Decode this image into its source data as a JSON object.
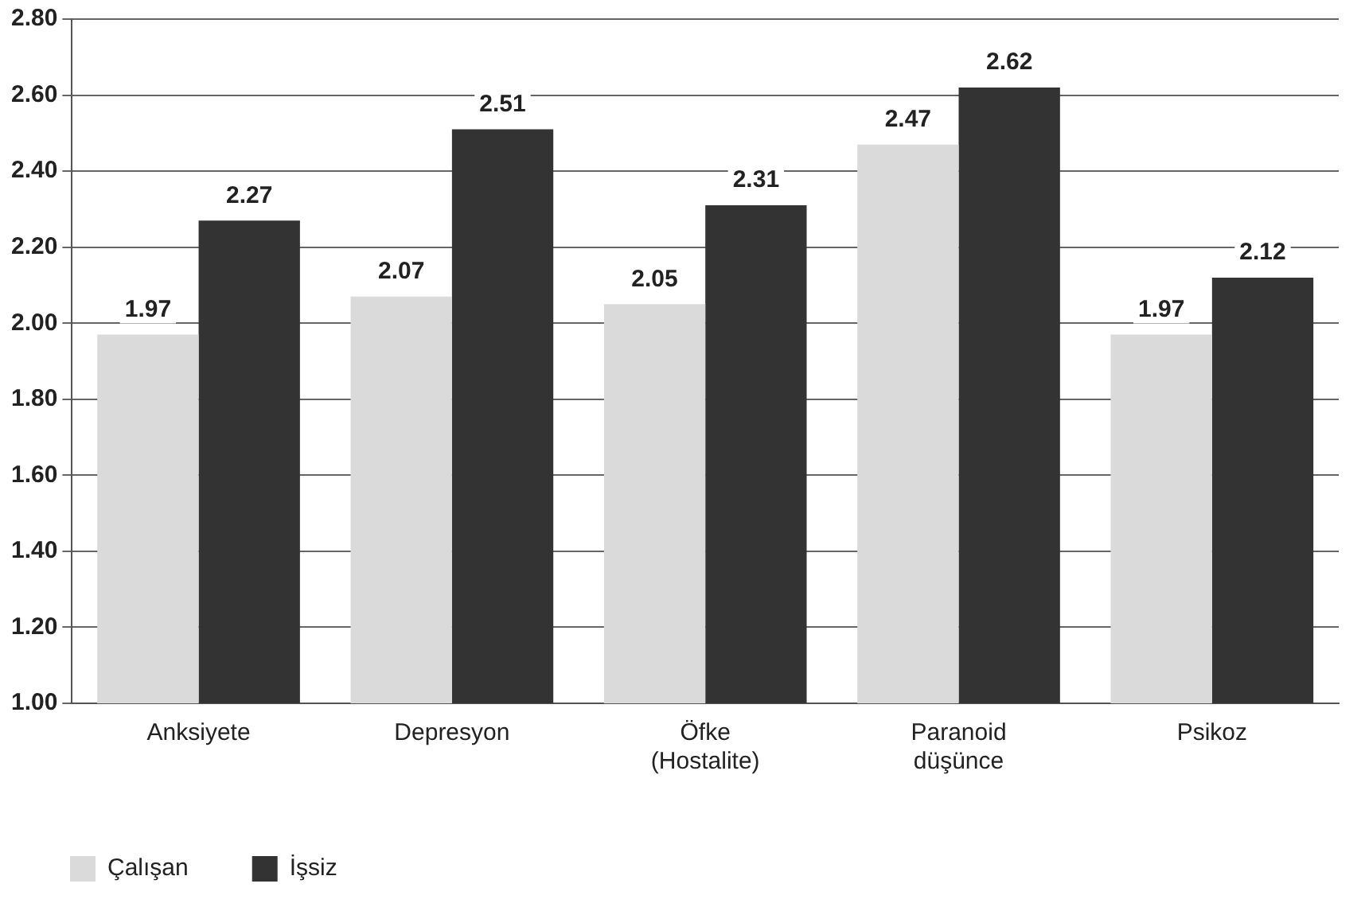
{
  "chart_data": {
    "type": "bar",
    "categories": [
      "Anksiyete",
      "Depresyon",
      "Öfke (Hostalite)",
      "Paranoid düşünce",
      "Psikoz"
    ],
    "series": [
      {
        "name": "Çalışan",
        "color": "#dadada",
        "values": [
          1.97,
          2.07,
          2.05,
          2.47,
          1.97
        ]
      },
      {
        "name": "İşsiz",
        "color": "#333333",
        "values": [
          2.27,
          2.51,
          2.31,
          2.62,
          2.12
        ]
      }
    ],
    "ylim": [
      1,
      2.8
    ],
    "yticks": [
      {
        "value": 1,
        "label": "1.00"
      },
      {
        "value": 1.2,
        "label": "1.20"
      },
      {
        "value": 1.4,
        "label": "1.40"
      },
      {
        "value": 1.6,
        "label": "1.60"
      },
      {
        "value": 1.8,
        "label": "1.80"
      },
      {
        "value": 2,
        "label": "2.00"
      },
      {
        "value": 2.2,
        "label": "2.20"
      },
      {
        "value": 2.4,
        "label": "2.40"
      },
      {
        "value": 2.6,
        "label": "2.60"
      },
      {
        "value": 2.8,
        "label": "2.80"
      }
    ],
    "grid": "y",
    "legend": "bottom left",
    "data_labels": true
  }
}
